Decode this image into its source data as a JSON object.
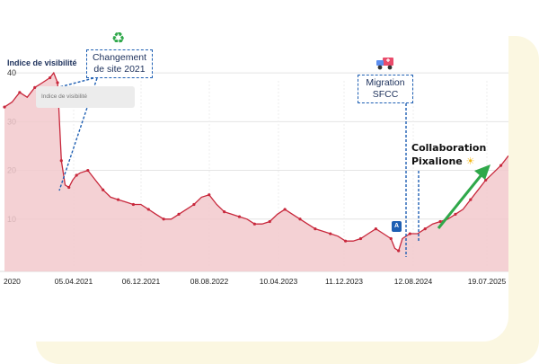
{
  "colors": {
    "line": "#c8283c",
    "area": "#f2c9cd",
    "callout_border": "#1e5fb3",
    "arrow": "#2fa84a",
    "text_dark": "#1b2f5a"
  },
  "tooltip_label": "Indice de visibilité",
  "callouts": {
    "site_change": "Changement de site 2021",
    "migration": "Migration SFCC"
  },
  "collab": {
    "line1": "Collaboration",
    "line2": "Pixalione"
  },
  "badge_letter": "A",
  "icons": [
    "recycle-icon",
    "truck-icon",
    "sun-icon",
    "trend-arrow-icon"
  ],
  "chart_data": {
    "type": "area",
    "ylabel": "Indice de visibilité",
    "ylim": [
      0,
      45
    ],
    "yticks": [
      10,
      20,
      30,
      40
    ],
    "xticks": [
      "2020",
      "05.04.2021",
      "06.12.2021",
      "08.08.2022",
      "10.04.2023",
      "11.12.2023",
      "12.08.2024",
      "19.07.2025"
    ],
    "grid": true,
    "series": [
      {
        "points": [
          [
            0,
            33
          ],
          [
            0.2,
            34
          ],
          [
            0.4,
            36
          ],
          [
            0.6,
            35
          ],
          [
            0.8,
            37
          ],
          [
            1.0,
            38
          ],
          [
            1.2,
            39
          ],
          [
            1.3,
            40
          ],
          [
            1.4,
            38
          ],
          [
            1.45,
            30
          ],
          [
            1.5,
            22
          ],
          [
            1.6,
            17
          ],
          [
            1.7,
            16.5
          ],
          [
            1.8,
            18
          ],
          [
            1.9,
            19
          ],
          [
            2.0,
            19.5
          ],
          [
            2.2,
            20
          ],
          [
            2.4,
            18
          ],
          [
            2.6,
            16
          ],
          [
            2.8,
            14.5
          ],
          [
            3.0,
            14
          ],
          [
            3.2,
            13.5
          ],
          [
            3.4,
            13
          ],
          [
            3.6,
            13
          ],
          [
            3.8,
            12
          ],
          [
            4.0,
            11
          ],
          [
            4.2,
            10
          ],
          [
            4.4,
            10
          ],
          [
            4.6,
            11
          ],
          [
            4.8,
            12
          ],
          [
            5.0,
            13
          ],
          [
            5.2,
            14.5
          ],
          [
            5.4,
            15
          ],
          [
            5.6,
            13
          ],
          [
            5.8,
            11.5
          ],
          [
            6.0,
            11
          ],
          [
            6.2,
            10.5
          ],
          [
            6.4,
            10
          ],
          [
            6.6,
            9
          ],
          [
            6.8,
            9
          ],
          [
            7.0,
            9.5
          ],
          [
            7.2,
            11
          ],
          [
            7.4,
            12
          ],
          [
            7.6,
            11
          ],
          [
            7.8,
            10
          ],
          [
            8.0,
            9
          ],
          [
            8.2,
            8
          ],
          [
            8.4,
            7.5
          ],
          [
            8.6,
            7
          ],
          [
            8.8,
            6.5
          ],
          [
            9.0,
            5.5
          ],
          [
            9.2,
            5.5
          ],
          [
            9.4,
            6
          ],
          [
            9.6,
            7
          ],
          [
            9.8,
            8
          ],
          [
            10.0,
            7
          ],
          [
            10.2,
            6
          ],
          [
            10.3,
            4
          ],
          [
            10.4,
            3.5
          ],
          [
            10.5,
            6
          ],
          [
            10.7,
            7
          ],
          [
            10.9,
            7
          ],
          [
            11.1,
            8
          ],
          [
            11.3,
            9
          ],
          [
            11.5,
            9.5
          ],
          [
            11.7,
            10
          ],
          [
            11.9,
            11
          ],
          [
            12.1,
            12
          ],
          [
            12.3,
            14
          ],
          [
            12.5,
            16
          ],
          [
            12.7,
            18
          ],
          [
            12.9,
            19.5
          ],
          [
            13.1,
            21
          ],
          [
            13.3,
            23
          ]
        ]
      }
    ],
    "annotations": [
      "Changement de site 2021",
      "Migration SFCC",
      "Collaboration Pixalione"
    ]
  }
}
